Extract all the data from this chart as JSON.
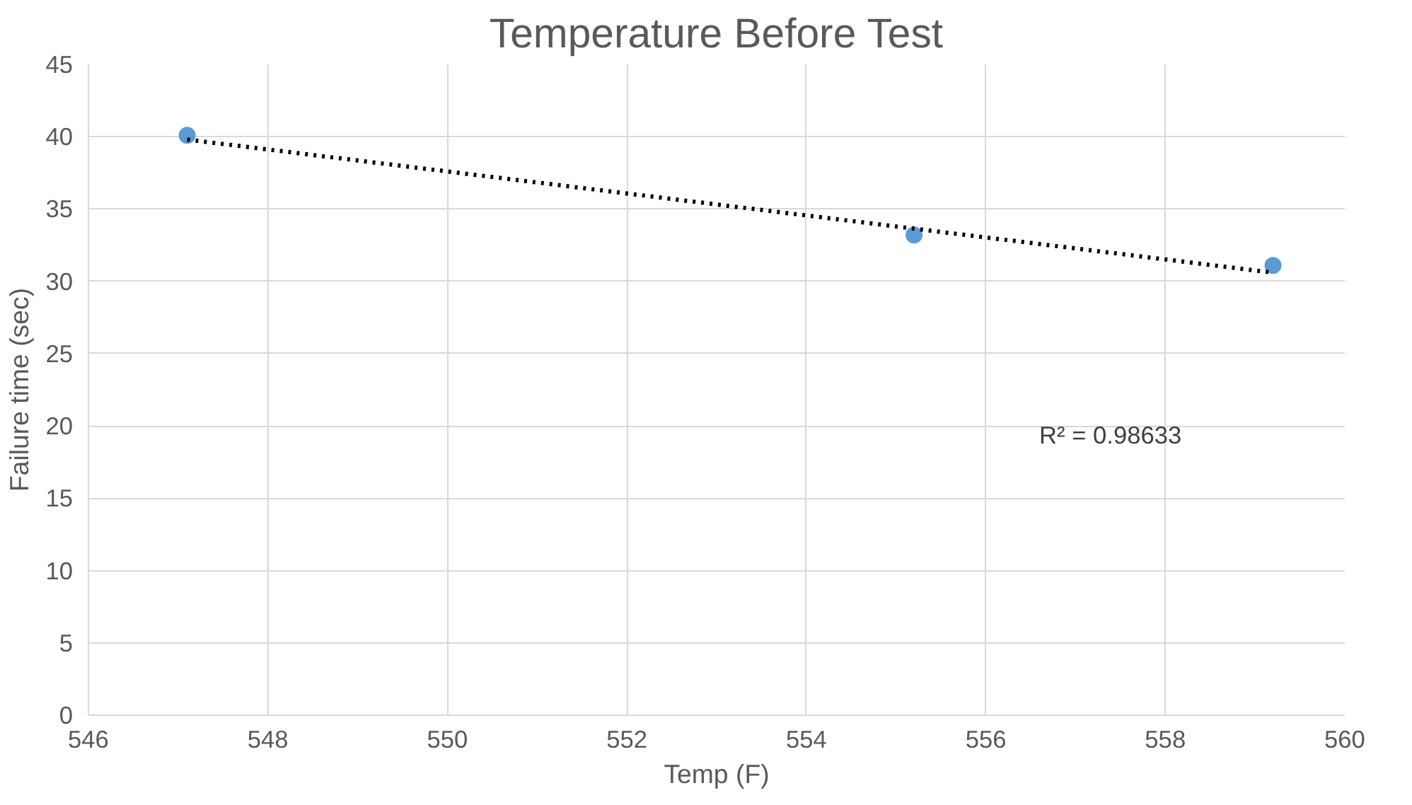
{
  "chart_data": {
    "type": "scatter",
    "title": "Temperature Before Test",
    "xlabel": "Temp (F)",
    "ylabel": "Failure time (sec)",
    "xlim": [
      546,
      560
    ],
    "xticks": [
      546,
      548,
      550,
      552,
      554,
      556,
      558,
      560
    ],
    "ylim": [
      0,
      45
    ],
    "yticks": [
      0,
      5,
      10,
      15,
      20,
      25,
      30,
      35,
      40,
      45
    ],
    "grid": true,
    "marker": "circle",
    "series": [
      {
        "color": "#5b9bd5",
        "x": [
          547.1,
          555.2,
          559.2
        ],
        "values": [
          40.1,
          33.2,
          31.1
        ]
      },
      {
        "type": "line",
        "color": "#000000",
        "line_style": "dotted",
        "marker": "none",
        "x": [
          547.1,
          559.2
        ],
        "values": [
          39.8,
          30.6
        ]
      }
    ],
    "annotations": [
      "R² = 0.98633"
    ]
  }
}
